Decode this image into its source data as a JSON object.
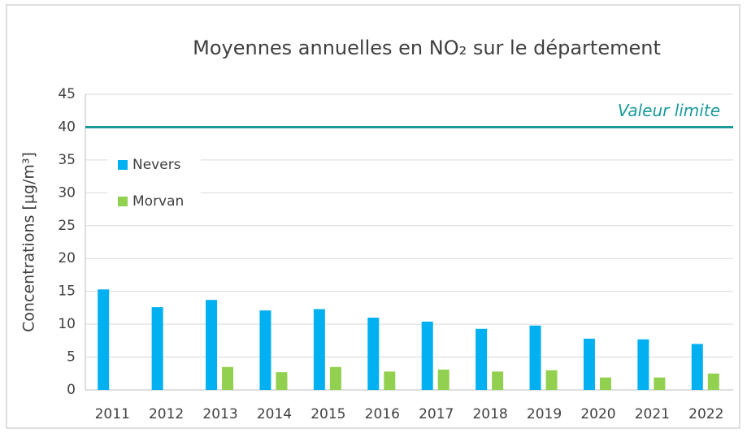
{
  "chart_data": {
    "type": "bar",
    "title": "Moyennes annuelles en NO₂ sur le département",
    "y_label": "Concentrations [µg/m³]",
    "categories": [
      "2011",
      "2012",
      "2013",
      "2014",
      "2015",
      "2016",
      "2017",
      "2018",
      "2019",
      "2020",
      "2021",
      "2022"
    ],
    "series": [
      {
        "name": "Nevers",
        "color": "#00b0f0",
        "values": [
          15.3,
          12.6,
          13.7,
          12.1,
          12.3,
          11.0,
          10.4,
          9.3,
          9.8,
          7.8,
          7.7,
          7.0
        ]
      },
      {
        "name": "Morvan",
        "color": "#92d050",
        "values": [
          null,
          null,
          3.5,
          2.7,
          3.5,
          2.8,
          3.1,
          2.8,
          3.0,
          1.9,
          1.9,
          2.5
        ]
      }
    ],
    "limit": {
      "value": 40,
      "label": "Valeur limite",
      "color": "#1a9a9a"
    },
    "ylim": [
      0,
      45
    ],
    "yticks": [
      0,
      5,
      10,
      15,
      20,
      25,
      30,
      35,
      40,
      45
    ],
    "grid": true,
    "legend": "upper left"
  }
}
